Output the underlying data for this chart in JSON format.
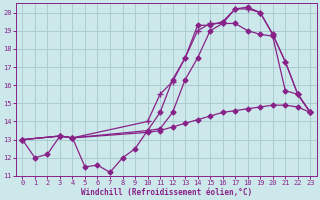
{
  "background_color": "#cce8eb",
  "grid_color": "#aacdd2",
  "line_color": "#882288",
  "xlabel": "Windchill (Refroidissement éolien,°C)",
  "xlabel_color": "#882288",
  "tick_color": "#882288",
  "xlim": [
    -0.5,
    23.5
  ],
  "ylim": [
    11,
    20.5
  ],
  "yticks": [
    11,
    12,
    13,
    14,
    15,
    16,
    17,
    18,
    19,
    20
  ],
  "xticks": [
    0,
    1,
    2,
    3,
    4,
    5,
    6,
    7,
    8,
    9,
    10,
    11,
    12,
    13,
    14,
    15,
    16,
    17,
    18,
    19,
    20,
    21,
    22,
    23
  ],
  "line1_x": [
    0,
    1,
    2,
    3,
    4,
    5,
    6,
    7,
    8,
    9,
    10,
    11,
    12,
    13,
    14,
    15,
    16,
    17,
    18,
    19,
    20,
    21,
    22,
    23
  ],
  "line1_y": [
    13.0,
    12.0,
    12.2,
    13.2,
    13.1,
    11.5,
    11.6,
    11.2,
    12.0,
    12.5,
    13.5,
    14.5,
    16.3,
    17.5,
    19.3,
    19.3,
    19.5,
    20.2,
    20.3,
    20.0,
    18.8,
    17.3,
    15.5,
    14.5
  ],
  "line2_x": [
    0,
    3,
    4,
    10,
    11,
    12,
    13,
    14,
    15,
    16,
    17,
    18,
    19,
    20,
    21,
    22,
    23
  ],
  "line2_y": [
    13.0,
    13.2,
    13.1,
    14.0,
    15.5,
    16.2,
    17.5,
    19.0,
    19.4,
    19.4,
    20.2,
    20.2,
    20.0,
    18.8,
    17.3,
    15.5,
    14.5
  ],
  "line3_x": [
    0,
    3,
    4,
    10,
    11,
    12,
    13,
    14,
    15,
    16,
    17,
    18,
    19,
    20,
    21,
    22,
    23
  ],
  "line3_y": [
    13.0,
    13.2,
    13.1,
    13.5,
    13.6,
    14.5,
    16.3,
    17.5,
    19.0,
    19.4,
    19.4,
    19.0,
    18.8,
    18.7,
    15.7,
    15.5,
    14.5
  ],
  "line4_x": [
    0,
    3,
    4,
    10,
    11,
    12,
    13,
    14,
    15,
    16,
    17,
    18,
    19,
    20,
    21,
    22,
    23
  ],
  "line4_y": [
    13.0,
    13.2,
    13.1,
    13.4,
    13.5,
    13.7,
    13.9,
    14.1,
    14.3,
    14.5,
    14.6,
    14.7,
    14.8,
    14.9,
    14.9,
    14.8,
    14.5
  ]
}
